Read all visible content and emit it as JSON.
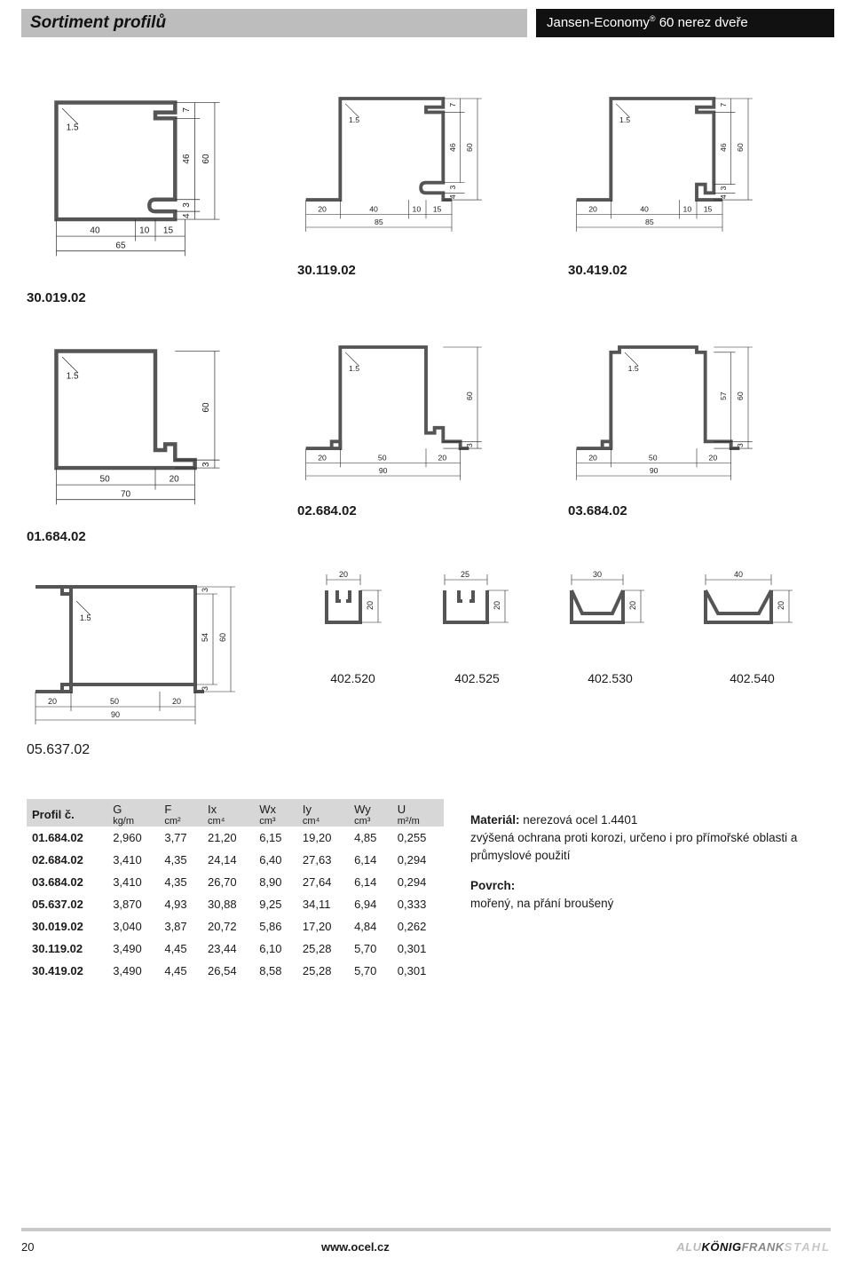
{
  "header": {
    "left_title": "Sortiment profilů",
    "right_title_pre": "Jansen-Economy",
    "right_title_sup": "®",
    "right_title_post": " 60 nerez dveře"
  },
  "profiles_row1": [
    {
      "id": "30.019.02",
      "thickness": "1.5",
      "top_right": "7",
      "right_mid": "46",
      "right_full": "60",
      "right_bot_step": "3",
      "right_bot_step2": "4",
      "bottom_dims": [
        "40",
        "10",
        "15"
      ],
      "bottom_total": "65"
    },
    {
      "id": "30.119.02",
      "thickness": "1.5",
      "top_right": "7",
      "right_mid": "46",
      "right_full": "60",
      "right_bot_step": "3",
      "right_bot_step2": "4",
      "bottom_dims": [
        "20",
        "40",
        "10",
        "15"
      ],
      "bottom_total": "85"
    },
    {
      "id": "30.419.02",
      "thickness": "1.5",
      "top_right": "7",
      "right_mid": "46",
      "right_full": "60",
      "right_bot_step": "3",
      "right_bot_step2": "4",
      "bottom_dims": [
        "20",
        "40",
        "10",
        "15"
      ],
      "bottom_total": "85"
    }
  ],
  "profiles_row2": [
    {
      "id": "01.684.02",
      "thickness": "1.5",
      "right_full": "60",
      "right_bot": "3",
      "bottom_dims": [
        "50",
        "20"
      ],
      "bottom_total": "70"
    },
    {
      "id": "02.684.02",
      "thickness": "1.5",
      "right_full": "60",
      "right_bot": "3",
      "bottom_dims": [
        "20",
        "50",
        "20"
      ],
      "bottom_total": "90"
    },
    {
      "id": "03.684.02",
      "thickness": "1.5",
      "right_mid": "57",
      "right_full": "60",
      "right_bot": "3",
      "bottom_dims": [
        "20",
        "50",
        "20"
      ],
      "bottom_total": "90"
    }
  ],
  "profiles_row3_big": {
    "id": "05.637.02",
    "thickness": "1.5",
    "right_mid": "54",
    "right_full": "60",
    "right_top": "3",
    "right_bot": "3",
    "bottom_dims": [
      "20",
      "50",
      "20"
    ],
    "bottom_total": "90"
  },
  "channels": [
    {
      "id": "402.520",
      "w": "20",
      "h": "20"
    },
    {
      "id": "402.525",
      "w": "25",
      "h": "20"
    },
    {
      "id": "402.530",
      "w": "30",
      "h": "20"
    },
    {
      "id": "402.540",
      "w": "40",
      "h": "20"
    }
  ],
  "table": {
    "headers": [
      {
        "t": "Profil č.",
        "u": ""
      },
      {
        "t": "G",
        "u": "kg/m"
      },
      {
        "t": "F",
        "u": "cm²"
      },
      {
        "t": "Ix",
        "u": "cm⁴"
      },
      {
        "t": "Wx",
        "u": "cm³"
      },
      {
        "t": "Iy",
        "u": "cm⁴"
      },
      {
        "t": "Wy",
        "u": "cm³"
      },
      {
        "t": "U",
        "u": "m²/m"
      }
    ],
    "rows": [
      [
        "01.684.02",
        "2,960",
        "3,77",
        "21,20",
        "6,15",
        "19,20",
        "4,85",
        "0,255"
      ],
      [
        "02.684.02",
        "3,410",
        "4,35",
        "24,14",
        "6,40",
        "27,63",
        "6,14",
        "0,294"
      ],
      [
        "03.684.02",
        "3,410",
        "4,35",
        "26,70",
        "8,90",
        "27,64",
        "6,14",
        "0,294"
      ],
      [
        "05.637.02",
        "3,870",
        "4,93",
        "30,88",
        "9,25",
        "34,11",
        "6,94",
        "0,333"
      ],
      [
        "30.019.02",
        "3,040",
        "3,87",
        "20,72",
        "5,86",
        "17,20",
        "4,84",
        "0,262"
      ],
      [
        "30.119.02",
        "3,490",
        "4,45",
        "23,44",
        "6,10",
        "25,28",
        "5,70",
        "0,301"
      ],
      [
        "30.419.02",
        "3,490",
        "4,45",
        "26,54",
        "8,58",
        "25,28",
        "5,70",
        "0,301"
      ]
    ]
  },
  "info": {
    "material_label": "Materiál:",
    "material_text": " nerezová ocel 1.4401",
    "material_note": "zvýšená ochrana proti korozi, určeno i pro přímořské oblasti a průmyslové použití",
    "surface_label": "Povrch:",
    "surface_text": "mořený, na přání broušený"
  },
  "footer": {
    "page": "20",
    "url": "www.ocel.cz",
    "brand_g1": "ALU",
    "brand_g2": "KÖNIG",
    "brand_g3": "FRANK",
    "brand_g4": "STAHL"
  },
  "style": {
    "profile_stroke": "#6b6b6b",
    "dim_color": "#222222",
    "header_gray": "#bdbdbd",
    "table_header_bg": "#d7d7d7"
  }
}
